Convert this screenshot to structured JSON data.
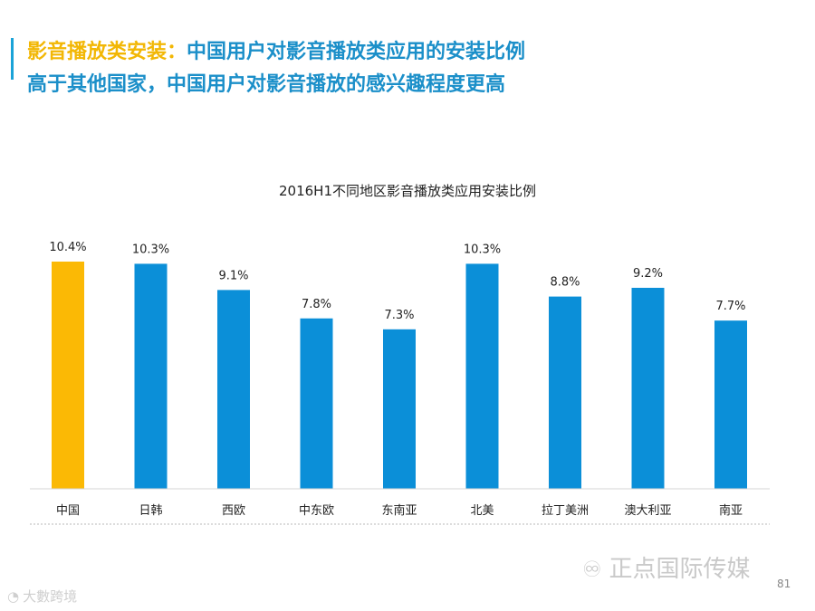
{
  "header": {
    "line1_highlight": "影音播放类安装：",
    "line1_rest": "中国用户对影音播放类应用的安装比例",
    "line2": "高于其他国家，中国用户对影音播放的感兴趣程度更高"
  },
  "chart_data": {
    "type": "bar",
    "title": "2016H1不同地区影音播放类应用安装比例",
    "categories": [
      "中国",
      "日韩",
      "西欧",
      "中东欧",
      "东南亚",
      "北美",
      "拉丁美洲",
      "澳大利亚",
      "南亚"
    ],
    "values": [
      10.4,
      10.3,
      9.1,
      7.8,
      7.3,
      10.3,
      8.8,
      9.2,
      7.7
    ],
    "data_labels": [
      "10.4%",
      "10.3%",
      "9.1%",
      "7.8%",
      "7.3%",
      "10.3%",
      "8.8%",
      "9.2%",
      "7.7%"
    ],
    "unit": "%",
    "ylim": [
      0,
      10.4
    ],
    "highlight_index": 0,
    "colors": {
      "default": "#0b8fd8",
      "highlight": "#fbb905"
    },
    "grid": false,
    "legend": "none"
  },
  "footer": {
    "watermark_icon": "wechat-icon",
    "watermark": "正点国际传媒",
    "page_number": "81",
    "corner_logo_icon": "logo-mark-icon",
    "corner_logo": "大數跨境"
  }
}
